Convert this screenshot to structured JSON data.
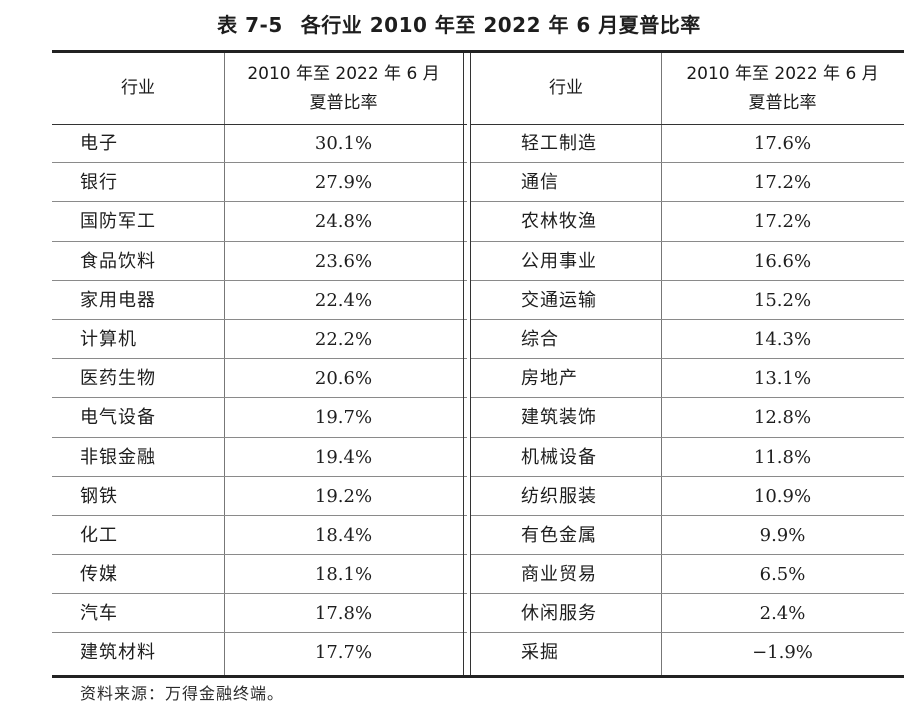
{
  "title": {
    "number": "表 7-5",
    "text": "各行业 2010 年至 2022 年 6 月夏普比率"
  },
  "table": {
    "header": {
      "industry": "行业",
      "ratio_line1": "2010 年至 2022 年 6 月",
      "ratio_line2": "夏普比率"
    },
    "left_rows": [
      {
        "industry": "电子",
        "ratio": "30.1%"
      },
      {
        "industry": "银行",
        "ratio": "27.9%"
      },
      {
        "industry": "国防军工",
        "ratio": "24.8%"
      },
      {
        "industry": "食品饮料",
        "ratio": "23.6%"
      },
      {
        "industry": "家用电器",
        "ratio": "22.4%"
      },
      {
        "industry": "计算机",
        "ratio": "22.2%"
      },
      {
        "industry": "医药生物",
        "ratio": "20.6%"
      },
      {
        "industry": "电气设备",
        "ratio": "19.7%"
      },
      {
        "industry": "非银金融",
        "ratio": "19.4%"
      },
      {
        "industry": "钢铁",
        "ratio": "19.2%"
      },
      {
        "industry": "化工",
        "ratio": "18.4%"
      },
      {
        "industry": "传媒",
        "ratio": "18.1%"
      },
      {
        "industry": "汽车",
        "ratio": "17.8%"
      },
      {
        "industry": "建筑材料",
        "ratio": "17.7%"
      }
    ],
    "right_rows": [
      {
        "industry": "轻工制造",
        "ratio": "17.6%"
      },
      {
        "industry": "通信",
        "ratio": "17.2%"
      },
      {
        "industry": "农林牧渔",
        "ratio": "17.2%"
      },
      {
        "industry": "公用事业",
        "ratio": "16.6%"
      },
      {
        "industry": "交通运输",
        "ratio": "15.2%"
      },
      {
        "industry": "综合",
        "ratio": "14.3%"
      },
      {
        "industry": "房地产",
        "ratio": "13.1%"
      },
      {
        "industry": "建筑装饰",
        "ratio": "12.8%"
      },
      {
        "industry": "机械设备",
        "ratio": "11.8%"
      },
      {
        "industry": "纺织服装",
        "ratio": "10.9%"
      },
      {
        "industry": "有色金属",
        "ratio": "9.9%"
      },
      {
        "industry": "商业贸易",
        "ratio": "6.5%"
      },
      {
        "industry": "休闲服务",
        "ratio": "2.4%"
      },
      {
        "industry": "采掘",
        "ratio": "−1.9%"
      }
    ]
  },
  "source": "资料来源：万得金融终端。"
}
